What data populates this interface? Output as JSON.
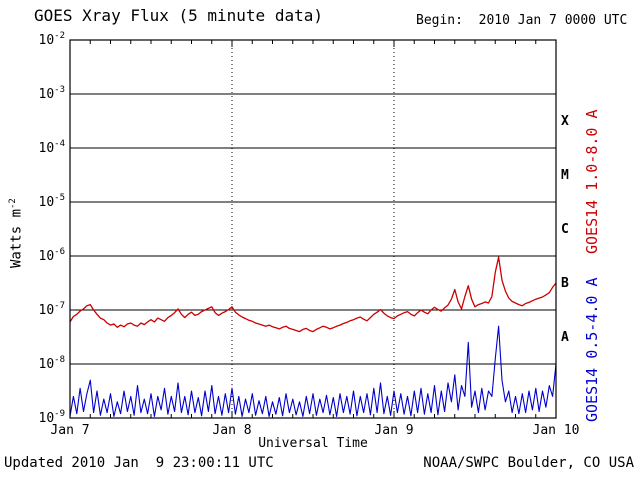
{
  "header": {
    "title": "GOES Xray Flux (5 minute data)",
    "begin_label": "Begin:  2010 Jan 7 0000 UTC"
  },
  "footer": {
    "updated": "Updated 2010 Jan  9 23:00:11 UTC",
    "credit": "NOAA/SWPC Boulder, CO USA"
  },
  "chart_data": {
    "type": "line",
    "title": "GOES Xray Flux (5 minute data)",
    "xlabel": "Universal Time",
    "ylabel": "Watts m-2",
    "ylabel_base": "Watts m",
    "ylabel_exp": "-2",
    "x_range_hours": [
      0,
      72
    ],
    "x_tick_hours": [
      0,
      24,
      48,
      72
    ],
    "x_tick_labels": [
      "Jan 7",
      "Jan 8",
      "Jan 9",
      "Jan 10"
    ],
    "x_minor_tick_step_hours": 3,
    "y_log10_range": [
      -9,
      -2
    ],
    "y_tick_exponents": [
      -2,
      -3,
      -4,
      -5,
      -6,
      -7,
      -8,
      -9
    ],
    "flare_classes": [
      {
        "label": "X",
        "log10_center": -3.5
      },
      {
        "label": "M",
        "log10_center": -4.5
      },
      {
        "label": "C",
        "log10_center": -5.5
      },
      {
        "label": "B",
        "log10_center": -6.5
      },
      {
        "label": "A",
        "log10_center": -7.5
      }
    ],
    "grid": {
      "horizontal_solid_at_exponents": [
        -3,
        -4,
        -5,
        -6,
        -7,
        -8
      ],
      "vertical_dotted_at_hours": [
        24,
        48
      ]
    },
    "sample_interval_hours": 0.5,
    "series": [
      {
        "name": "GOES14 1.0-8.0 A",
        "color": "#cc0000",
        "log10_watts_per_m2": [
          -7.22,
          -7.12,
          -7.08,
          -7.02,
          -6.98,
          -6.92,
          -6.9,
          -7.0,
          -7.08,
          -7.15,
          -7.18,
          -7.24,
          -7.28,
          -7.26,
          -7.32,
          -7.28,
          -7.31,
          -7.26,
          -7.24,
          -7.28,
          -7.3,
          -7.24,
          -7.27,
          -7.22,
          -7.18,
          -7.22,
          -7.15,
          -7.18,
          -7.21,
          -7.14,
          -7.1,
          -7.05,
          -6.98,
          -7.08,
          -7.14,
          -7.08,
          -7.04,
          -7.1,
          -7.08,
          -7.03,
          -7.0,
          -6.97,
          -6.94,
          -7.05,
          -7.1,
          -7.06,
          -7.03,
          -6.99,
          -6.94,
          -7.04,
          -7.09,
          -7.13,
          -7.16,
          -7.19,
          -7.21,
          -7.24,
          -7.26,
          -7.28,
          -7.3,
          -7.28,
          -7.31,
          -7.33,
          -7.35,
          -7.32,
          -7.3,
          -7.34,
          -7.36,
          -7.38,
          -7.4,
          -7.36,
          -7.34,
          -7.38,
          -7.4,
          -7.36,
          -7.33,
          -7.3,
          -7.32,
          -7.35,
          -7.33,
          -7.3,
          -7.28,
          -7.25,
          -7.23,
          -7.2,
          -7.18,
          -7.15,
          -7.13,
          -7.17,
          -7.2,
          -7.14,
          -7.08,
          -7.04,
          -6.99,
          -7.06,
          -7.11,
          -7.14,
          -7.16,
          -7.11,
          -7.08,
          -7.05,
          -7.03,
          -7.08,
          -7.11,
          -7.05,
          -7.0,
          -7.04,
          -7.07,
          -7.0,
          -6.95,
          -6.99,
          -7.02,
          -6.96,
          -6.91,
          -6.8,
          -6.62,
          -6.85,
          -6.98,
          -6.75,
          -6.55,
          -6.8,
          -6.94,
          -6.9,
          -6.88,
          -6.85,
          -6.87,
          -6.75,
          -6.3,
          -6.02,
          -6.45,
          -6.65,
          -6.78,
          -6.84,
          -6.87,
          -6.9,
          -6.92,
          -6.88,
          -6.86,
          -6.83,
          -6.8,
          -6.78,
          -6.76,
          -6.72,
          -6.68,
          -6.58,
          -6.5
        ]
      },
      {
        "name": "GOES14 0.5-4.0 A",
        "color": "#0000cc",
        "log10_watts_per_m2": [
          -8.97,
          -8.6,
          -8.92,
          -8.45,
          -8.88,
          -8.55,
          -8.3,
          -8.9,
          -8.5,
          -8.95,
          -8.65,
          -8.9,
          -8.55,
          -8.97,
          -8.7,
          -8.92,
          -8.5,
          -8.88,
          -8.6,
          -8.95,
          -8.4,
          -8.9,
          -8.65,
          -8.92,
          -8.55,
          -8.97,
          -8.6,
          -8.85,
          -8.45,
          -8.93,
          -8.6,
          -8.88,
          -8.35,
          -8.9,
          -8.6,
          -8.94,
          -8.5,
          -8.9,
          -8.62,
          -8.96,
          -8.5,
          -8.88,
          -8.4,
          -8.92,
          -8.6,
          -8.95,
          -8.55,
          -8.9,
          -8.45,
          -8.93,
          -8.6,
          -8.97,
          -8.65,
          -8.9,
          -8.55,
          -8.95,
          -8.68,
          -8.92,
          -8.6,
          -8.97,
          -8.7,
          -8.93,
          -8.62,
          -8.96,
          -8.55,
          -8.9,
          -8.65,
          -8.94,
          -8.7,
          -8.97,
          -8.6,
          -8.92,
          -8.55,
          -8.95,
          -8.65,
          -8.9,
          -8.58,
          -8.94,
          -8.62,
          -8.97,
          -8.55,
          -8.9,
          -8.6,
          -8.93,
          -8.5,
          -8.96,
          -8.6,
          -8.9,
          -8.55,
          -8.94,
          -8.45,
          -8.9,
          -8.35,
          -8.92,
          -8.6,
          -8.95,
          -8.5,
          -8.9,
          -8.55,
          -8.93,
          -8.6,
          -8.96,
          -8.5,
          -8.9,
          -8.45,
          -8.93,
          -8.55,
          -8.9,
          -8.4,
          -8.94,
          -8.5,
          -8.88,
          -8.35,
          -8.7,
          -8.2,
          -8.85,
          -8.4,
          -8.6,
          -7.6,
          -8.8,
          -8.5,
          -8.9,
          -8.45,
          -8.85,
          -8.5,
          -8.6,
          -7.9,
          -7.3,
          -8.3,
          -8.7,
          -8.5,
          -8.9,
          -8.6,
          -8.92,
          -8.55,
          -8.9,
          -8.5,
          -8.85,
          -8.45,
          -8.88,
          -8.5,
          -8.8,
          -8.4,
          -8.6,
          -8.0
        ]
      }
    ]
  }
}
